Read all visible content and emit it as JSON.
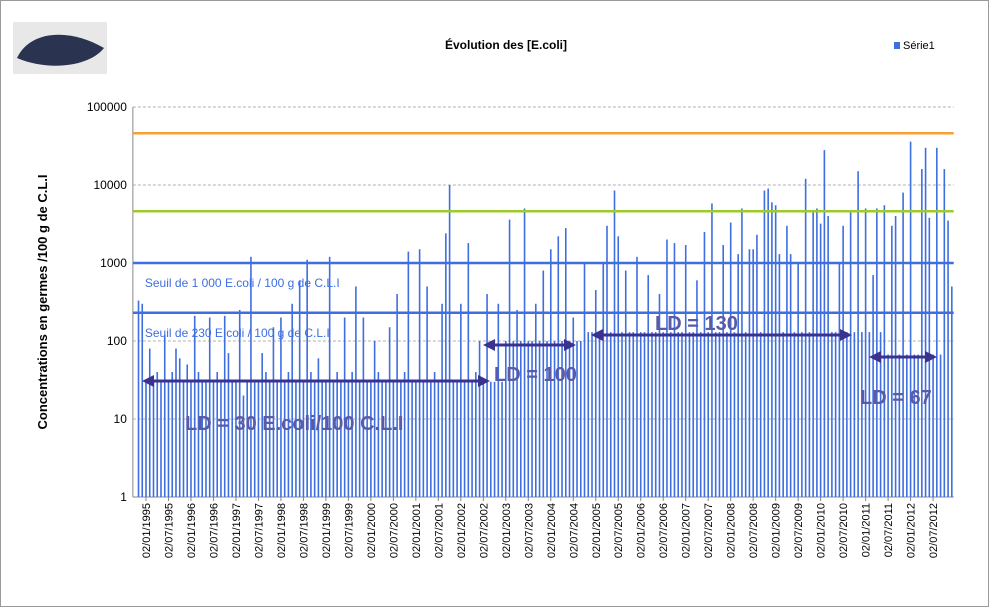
{
  "chart_data": {
    "type": "bar",
    "title": "Évolution des [E.coli]",
    "y_label": "Concentrations en germes /100 g de C.L.I",
    "log_scale": true,
    "grid": true,
    "legend": "top-right",
    "ylim": [
      1,
      100000
    ],
    "yticks": [
      1,
      10,
      100,
      1000,
      10000,
      100000
    ],
    "categories": [
      null,
      null,
      null,
      "02/01/1995",
      null,
      null,
      null,
      null,
      null,
      "02/07/1995",
      null,
      null,
      null,
      null,
      null,
      "02/01/1996",
      null,
      null,
      null,
      null,
      null,
      "02/07/1996",
      null,
      null,
      null,
      null,
      null,
      "02/01/1997",
      null,
      null,
      null,
      null,
      null,
      "02/07/1997",
      null,
      null,
      null,
      null,
      null,
      "02/01/1998",
      null,
      null,
      null,
      null,
      null,
      "02/07/1998",
      null,
      null,
      null,
      null,
      null,
      "02/01/1999",
      null,
      null,
      null,
      null,
      null,
      "02/07/1999",
      null,
      null,
      null,
      null,
      null,
      "02/01/2000",
      null,
      null,
      null,
      null,
      null,
      "02/07/2000",
      null,
      null,
      null,
      null,
      null,
      "02/01/2001",
      null,
      null,
      null,
      null,
      null,
      "02/07/2001",
      null,
      null,
      null,
      null,
      null,
      "02/01/2002",
      null,
      null,
      null,
      null,
      null,
      "02/07/2002",
      null,
      null,
      null,
      null,
      null,
      "02/01/2003",
      null,
      null,
      null,
      null,
      null,
      "02/07/2003",
      null,
      null,
      null,
      null,
      null,
      "02/01/2004",
      null,
      null,
      null,
      null,
      null,
      "02/07/2004",
      null,
      null,
      null,
      null,
      null,
      "02/01/2005",
      null,
      null,
      null,
      null,
      null,
      "02/07/2005",
      null,
      null,
      null,
      null,
      null,
      "02/01/2006",
      null,
      null,
      null,
      null,
      null,
      "02/07/2006",
      null,
      null,
      null,
      null,
      null,
      "02/01/2007",
      null,
      null,
      null,
      null,
      null,
      "02/07/2007",
      null,
      null,
      null,
      null,
      null,
      "02/01/2008",
      null,
      null,
      null,
      null,
      null,
      "02/07/2008",
      null,
      null,
      null,
      null,
      null,
      "02/01/2009",
      null,
      null,
      null,
      null,
      null,
      "02/07/2009",
      null,
      null,
      null,
      null,
      null,
      "02/01/2010",
      null,
      null,
      null,
      null,
      null,
      "02/07/2010",
      null,
      null,
      null,
      null,
      null,
      "02/01/2011",
      null,
      null,
      null,
      null,
      null,
      "02/07/2011",
      null,
      null,
      null,
      null,
      null,
      "02/01/2012",
      null,
      null,
      null,
      null,
      null,
      "02/07/2012",
      null,
      null,
      null,
      null,
      null
    ],
    "series": [
      {
        "name": "Série1",
        "color": "#3e6ee0",
        "values": [
          null,
          330,
          300,
          30,
          80,
          30,
          40,
          30,
          120,
          30,
          40,
          80,
          60,
          30,
          50,
          30,
          210,
          40,
          30,
          30,
          200,
          30,
          40,
          30,
          210,
          70,
          30,
          30,
          250,
          20,
          30,
          1200,
          30,
          30,
          70,
          40,
          30,
          150,
          30,
          200,
          30,
          40,
          300,
          30,
          600,
          30,
          1100,
          40,
          30,
          60,
          30,
          30,
          1200,
          30,
          40,
          30,
          200,
          30,
          40,
          500,
          30,
          200,
          30,
          30,
          100,
          40,
          30,
          30,
          150,
          30,
          400,
          30,
          40,
          1400,
          30,
          30,
          1500,
          30,
          500,
          30,
          40,
          30,
          300,
          2400,
          10000,
          30,
          30,
          300,
          30,
          1800,
          30,
          40,
          100,
          30,
          400,
          30,
          30,
          300,
          30,
          100,
          3600,
          100,
          250,
          100,
          5000,
          100,
          100,
          300,
          100,
          800,
          100,
          1500,
          100,
          2200,
          100,
          2800,
          100,
          200,
          100,
          100,
          1000,
          130,
          130,
          450,
          130,
          1000,
          3000,
          130,
          8500,
          2200,
          130,
          800,
          130,
          130,
          1200,
          130,
          130,
          700,
          130,
          130,
          400,
          130,
          2000,
          130,
          1800,
          130,
          130,
          1700,
          130,
          130,
          600,
          130,
          2500,
          130,
          5800,
          130,
          130,
          1700,
          130,
          3300,
          130,
          1300,
          5000,
          130,
          1500,
          1500,
          2300,
          130,
          8500,
          9000,
          6000,
          5500,
          1300,
          130,
          3000,
          1300,
          130,
          1000,
          130,
          12000,
          130,
          4500,
          5000,
          3200,
          28000,
          4000,
          130,
          130,
          1000,
          3000,
          130,
          4500,
          130,
          15000,
          130,
          5000,
          130,
          700,
          5000,
          130,
          5500,
          67,
          3000,
          4000,
          67,
          8000,
          67,
          36000,
          67,
          67,
          16000,
          30000,
          3800,
          67,
          30000,
          67,
          16000,
          3500,
          500
        ]
      }
    ],
    "reference_lines": [
      {
        "value": 46000,
        "color": "#f7a034"
      },
      {
        "value": 4600,
        "color": "#9ccc2c"
      },
      {
        "value": 1000,
        "color": "#3e6ee0",
        "label": "Seuil de 1 000 E.coli / 100 g de C.L.I"
      },
      {
        "value": 230,
        "color": "#3e6ee0",
        "label": "Seuil de 230 E.coli / 100 g de C.L.I"
      }
    ],
    "annotations": [
      "LD = 30 E.coli/100 C.L.I",
      "LD = 100",
      "LD = 130",
      "LD = 67"
    ]
  }
}
